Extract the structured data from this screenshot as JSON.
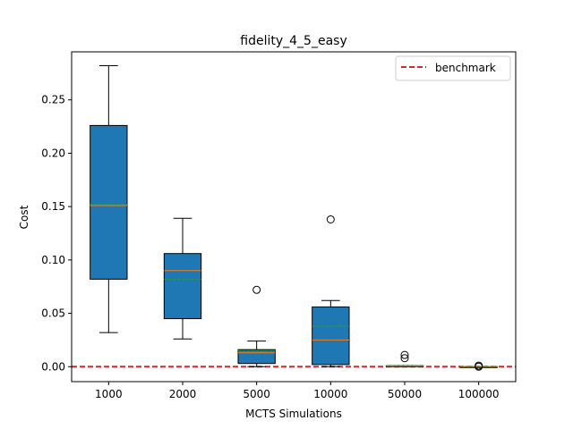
{
  "chart_data": {
    "type": "box",
    "title": "fidelity_4_5_easy",
    "xlabel": "MCTS Simulations",
    "ylabel": "Cost",
    "ylim": [
      -0.014,
      0.295
    ],
    "yticks": [
      0.0,
      0.05,
      0.1,
      0.15,
      0.2,
      0.25
    ],
    "ytick_labels": [
      "0.00",
      "0.05",
      "0.10",
      "0.15",
      "0.20",
      "0.25"
    ],
    "categories": [
      "1000",
      "2000",
      "5000",
      "10000",
      "50000",
      "100000"
    ],
    "boxes": [
      {
        "whisker_low": 0.032,
        "q1": 0.082,
        "median": 0.151,
        "mean": 0.152,
        "q3": 0.226,
        "whisker_high": 0.282,
        "outliers": []
      },
      {
        "whisker_low": 0.026,
        "q1": 0.045,
        "median": 0.09,
        "mean": 0.082,
        "q3": 0.106,
        "whisker_high": 0.139,
        "outliers": []
      },
      {
        "whisker_low": 0.0,
        "q1": 0.003,
        "median": 0.013,
        "mean": 0.015,
        "q3": 0.016,
        "whisker_high": 0.024,
        "outliers": [
          0.072
        ]
      },
      {
        "whisker_low": 0.0,
        "q1": 0.002,
        "median": 0.025,
        "mean": 0.038,
        "q3": 0.056,
        "whisker_high": 0.062,
        "outliers": [
          0.138
        ]
      },
      {
        "whisker_low": 0.0,
        "q1": 0.0,
        "median": 0.0005,
        "mean": 0.001,
        "q3": 0.001,
        "whisker_high": 0.001,
        "outliers": [
          0.011,
          0.008
        ]
      },
      {
        "whisker_low": 0.0,
        "q1": 0.0,
        "median": 0.0,
        "mean": 0.0002,
        "q3": 0.0,
        "whisker_high": 0.0,
        "outliers": [
          0.001,
          0.0
        ]
      }
    ],
    "benchmark": {
      "name": "benchmark",
      "value": 0.0
    },
    "colors": {
      "box_fill": "#1f77b4",
      "median": "#ff7f0e",
      "mean": "#2ca02c",
      "benchmark": "#d62728",
      "edge": "#000000"
    },
    "legend_position": "top-right",
    "grid": false
  }
}
